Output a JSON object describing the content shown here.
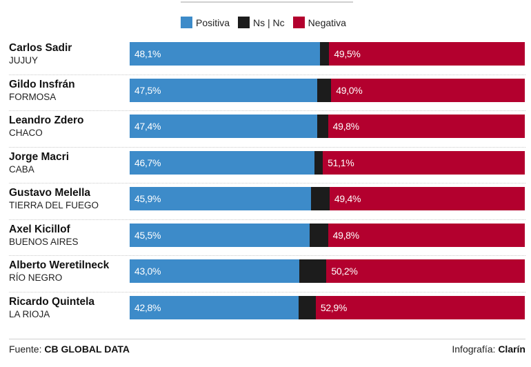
{
  "legend": [
    {
      "label": "Positiva",
      "color": "#3d8bc9"
    },
    {
      "label": "Ns | Nc",
      "color": "#1c1c1c"
    },
    {
      "label": "Negativa",
      "color": "#b3002e"
    }
  ],
  "chart_data": {
    "type": "bar",
    "orientation": "horizontal",
    "stacked": true,
    "normalized_total": 100,
    "categories": [
      {
        "name": "Carlos Sadir",
        "region": "JUJUY"
      },
      {
        "name": "Gildo Insfrán",
        "region": "FORMOSA"
      },
      {
        "name": "Leandro Zdero",
        "region": "CHACO"
      },
      {
        "name": "Jorge Macri",
        "region": "CABA"
      },
      {
        "name": "Gustavo Melella",
        "region": "TIERRA DEL FUEGO"
      },
      {
        "name": "Axel Kicillof",
        "region": "BUENOS AIRES"
      },
      {
        "name": "Alberto Weretilneck",
        "region": "RÍO NEGRO"
      },
      {
        "name": "Ricardo Quintela",
        "region": "LA RIOJA"
      }
    ],
    "series": [
      {
        "name": "Positiva",
        "color": "#3d8bc9",
        "values": [
          48.1,
          47.5,
          47.4,
          46.7,
          45.9,
          45.5,
          43.0,
          42.8
        ],
        "labels": [
          "48,1%",
          "47,5%",
          "47,4%",
          "46,7%",
          "45,9%",
          "45,5%",
          "43,0%",
          "42,8%"
        ]
      },
      {
        "name": "Ns | Nc",
        "color": "#1c1c1c",
        "values": [
          2.4,
          3.5,
          2.8,
          2.2,
          4.7,
          4.7,
          6.8,
          4.3
        ],
        "labels": [
          "",
          "",
          "",
          "",
          "",
          "",
          "",
          ""
        ]
      },
      {
        "name": "Negativa",
        "color": "#b3002e",
        "values": [
          49.5,
          49.0,
          49.8,
          51.1,
          49.4,
          49.8,
          50.2,
          52.9
        ],
        "labels": [
          "49,5%",
          "49,0%",
          "49,8%",
          "51,1%",
          "49,4%",
          "49,8%",
          "50,2%",
          "52,9%"
        ]
      }
    ],
    "legend_position": "top-center",
    "grid": false
  },
  "footer": {
    "source_prefix": "Fuente:",
    "source": "CB GLOBAL DATA",
    "credit_prefix": "Infografía:",
    "credit": "Clarín"
  }
}
